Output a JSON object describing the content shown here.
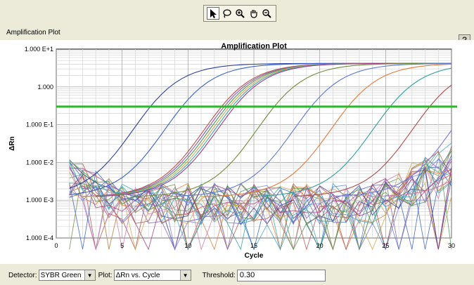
{
  "toolbar": {
    "tools": [
      {
        "icon": "arrow-pointer-icon",
        "active": true
      },
      {
        "icon": "lasso-icon",
        "active": false
      },
      {
        "icon": "zoom-in-icon",
        "active": false
      },
      {
        "icon": "hand-pan-icon",
        "active": false
      },
      {
        "icon": "zoom-out-icon",
        "active": false
      }
    ]
  },
  "section_title": "Amplification Plot",
  "help_label": "?",
  "chart_data": {
    "type": "line",
    "title": "Amplification Plot",
    "xlabel": "Cycle",
    "ylabel": "ΔRn",
    "xlim": [
      0,
      30
    ],
    "ylim": [
      0.0001,
      10
    ],
    "yscale": "log",
    "grid": true,
    "x_ticks": [
      0,
      5,
      10,
      15,
      20,
      25,
      30
    ],
    "y_ticks": [
      {
        "value": 10,
        "label": "1.000 E+1"
      },
      {
        "value": 1,
        "label": "1.000"
      },
      {
        "value": 0.1,
        "label": "1.000 E-1"
      },
      {
        "value": 0.01,
        "label": "1.000 E-2"
      },
      {
        "value": 0.001,
        "label": "1.000 E-3"
      },
      {
        "value": 0.0001,
        "label": "1.000 E-4"
      }
    ],
    "threshold": {
      "value": 0.3,
      "color": "#2db52d"
    },
    "amplification_cycles": [
      1.8,
      4.2,
      7.2,
      7.4,
      7.6,
      7.8,
      8.0,
      8.2,
      11.2,
      14.0,
      16.8,
      20.0,
      23.0,
      26.0,
      29.5
    ],
    "plateau": 4.2,
    "series_colors": [
      "#2b3f9e",
      "#3a64c8",
      "#c0504d",
      "#8a5fb0",
      "#4f9b5a",
      "#d4a64a",
      "#3ca5c4",
      "#a04080",
      "#6e8f3a",
      "#5c7ad6",
      "#e07a3a",
      "#2f9f9f",
      "#b04a4a",
      "#7a7adf",
      "#d47aa8"
    ],
    "noise_series_count": 24
  },
  "detector": {
    "label": "Detector:",
    "value": "SYBR Green"
  },
  "plot_select": {
    "label": "Plot:",
    "value": "ΔRn vs. Cycle"
  },
  "threshold_field": {
    "label": "Threshold:",
    "value": "0.30"
  }
}
